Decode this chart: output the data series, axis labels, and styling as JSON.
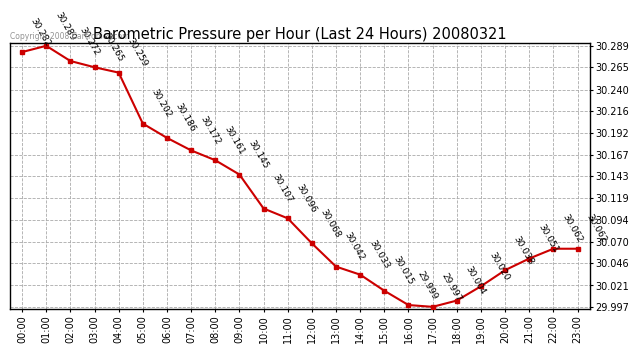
{
  "title": "Barometric Pressure per Hour (Last 24 Hours) 20080321",
  "hours": [
    "00:00",
    "01:00",
    "02:00",
    "03:00",
    "04:00",
    "05:00",
    "06:00",
    "07:00",
    "08:00",
    "09:00",
    "10:00",
    "11:00",
    "12:00",
    "13:00",
    "14:00",
    "15:00",
    "16:00",
    "17:00",
    "18:00",
    "19:00",
    "20:00",
    "21:00",
    "22:00",
    "23:00"
  ],
  "values": [
    30.282,
    30.289,
    30.272,
    30.265,
    30.259,
    30.202,
    30.186,
    30.172,
    30.161,
    30.145,
    30.107,
    30.096,
    30.068,
    30.042,
    30.033,
    30.015,
    29.999,
    29.997,
    30.004,
    30.02,
    30.038,
    30.051,
    30.062,
    30.062
  ],
  "ylim_min": 29.997,
  "ylim_max": 30.289,
  "yticks": [
    29.997,
    30.021,
    30.046,
    30.07,
    30.094,
    30.119,
    30.143,
    30.167,
    30.192,
    30.216,
    30.24,
    30.265,
    30.289
  ],
  "line_color": "#cc0000",
  "marker_color": "#cc0000",
  "bg_color": "#ffffff",
  "grid_color": "#aaaaaa",
  "copyright": "Copyright 2008 Cartronics.com",
  "label_fontsize": 6.5,
  "title_fontsize": 10.5,
  "tick_fontsize": 7.0
}
